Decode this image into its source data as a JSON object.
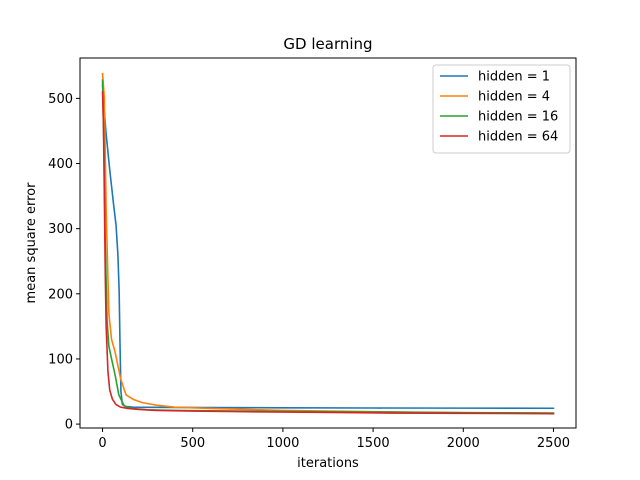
{
  "chart_data": {
    "type": "line",
    "title": "GD learning",
    "xlabel": "iterations",
    "ylabel": "mean square error",
    "xlim": [
      -125,
      2625
    ],
    "ylim": [
      -6,
      562
    ],
    "xticks": [
      0,
      500,
      1000,
      1500,
      2000,
      2500
    ],
    "yticks": [
      0,
      100,
      200,
      300,
      400,
      500
    ],
    "grid": false,
    "legend_position": "top-right",
    "series": [
      {
        "name": "hidden = 1",
        "color": "#1f77b4",
        "x": [
          0,
          10,
          20,
          40,
          60,
          75,
          85,
          92,
          97,
          102,
          110,
          130,
          170,
          250,
          400,
          600,
          1000,
          1500,
          2000,
          2500
        ],
        "y": [
          520,
          480,
          445,
          390,
          340,
          305,
          260,
          205,
          120,
          50,
          30,
          27,
          26,
          25.8,
          25.5,
          25.3,
          25,
          24.7,
          24.5,
          24.3
        ]
      },
      {
        "name": "hidden = 4",
        "color": "#ff7f0e",
        "x": [
          0,
          10,
          20,
          35,
          50,
          70,
          100,
          130,
          170,
          220,
          300,
          400,
          600,
          1000,
          1500,
          2000,
          2500
        ],
        "y": [
          538,
          500,
          330,
          170,
          130,
          110,
          70,
          45,
          38,
          33,
          29,
          26,
          24,
          21,
          19,
          17.5,
          16.5
        ]
      },
      {
        "name": "hidden = 16",
        "color": "#2ca02c",
        "x": [
          0,
          8,
          15,
          25,
          35,
          50,
          70,
          90,
          120,
          160,
          250,
          400,
          600,
          1000,
          1500,
          2000,
          2500
        ],
        "y": [
          528,
          420,
          280,
          160,
          120,
          100,
          75,
          45,
          28,
          24,
          22,
          21,
          20.5,
          19.5,
          18.5,
          17.5,
          17
        ]
      },
      {
        "name": "hidden = 64",
        "color": "#d62728",
        "x": [
          0,
          5,
          10,
          15,
          20,
          30,
          40,
          55,
          75,
          100,
          140,
          200,
          300,
          500,
          800,
          1200,
          1600,
          2000,
          2500
        ],
        "y": [
          510,
          460,
          350,
          230,
          150,
          80,
          52,
          38,
          30,
          26,
          24,
          22.5,
          21,
          20,
          19,
          18,
          17,
          16.5,
          16
        ]
      }
    ]
  }
}
